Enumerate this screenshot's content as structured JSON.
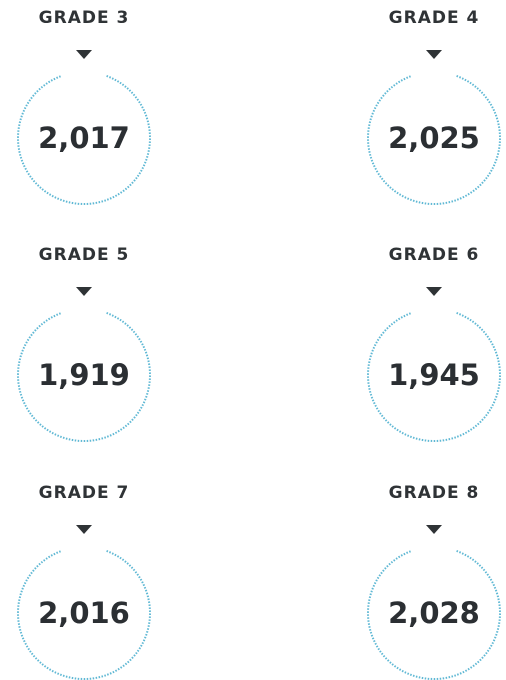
{
  "items": [
    {
      "label": "GRADE 3",
      "value": "2,017"
    },
    {
      "label": "GRADE 4",
      "value": "2,025"
    },
    {
      "label": "GRADE 5",
      "value": "1,919"
    },
    {
      "label": "GRADE 6",
      "value": "1,945"
    },
    {
      "label": "GRADE 7",
      "value": "2,016"
    },
    {
      "label": "GRADE 8",
      "value": "2,028"
    }
  ]
}
